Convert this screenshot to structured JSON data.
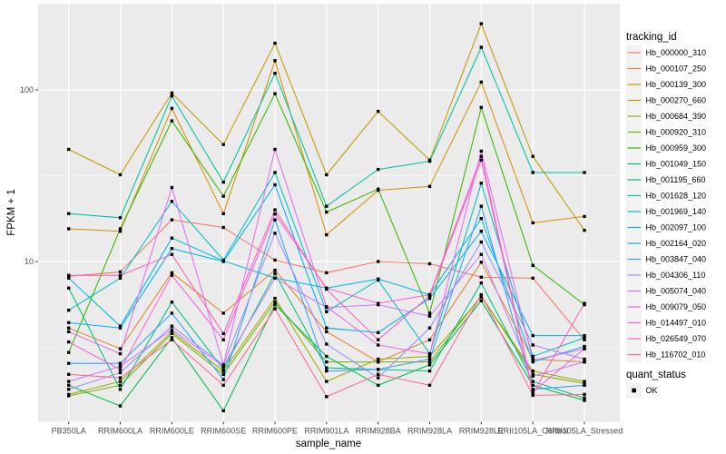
{
  "figure": {
    "x_axis_title": "sample_name",
    "y_axis_title": "FPKM + 1",
    "y_tick_labels": [
      "100",
      "10"
    ]
  },
  "legend": {
    "tracking_title": "tracking_id",
    "quant_title": "quant_status",
    "quant_items": [
      {
        "label": "OK",
        "marker": "black-square"
      }
    ]
  },
  "chart_data": {
    "type": "line",
    "title": "",
    "xlabel": "sample_name",
    "ylabel": "FPKM + 1",
    "y_scale": "log10",
    "ylim": [
      1.2,
      310
    ],
    "y_major_ticks": [
      10,
      100
    ],
    "y_minor_gridlines": [
      3.162,
      31.62
    ],
    "grid": true,
    "legend_position": "right",
    "panel_background": "#EBEBEB",
    "gridline_color": "#FFFFFF",
    "point_marker": "black-square",
    "point_color": "#000000",
    "categories": [
      "PB350LA",
      "RRIM600LA",
      "RRIM600LE",
      "RRIM600SE",
      "RRIM600PE",
      "RRIM901LA",
      "RRIM928BA",
      "RRIM928LA",
      "RRIM928LE",
      "RRII105LA_Control",
      "RRII105LA_Stressed"
    ],
    "series": [
      {
        "name": "Hb_000000_310",
        "color": "#F8766D",
        "values": [
          8.2,
          8.7,
          17.5,
          15.8,
          10.2,
          8.6,
          10.0,
          9.7,
          8.1,
          8.0,
          3.5
        ]
      },
      {
        "name": "Hb_000107_250",
        "color": "#EA8331",
        "values": [
          4.1,
          3.1,
          8.6,
          5.0,
          8.9,
          3.9,
          2.6,
          3.5,
          9.9,
          2.7,
          2.6
        ]
      },
      {
        "name": "Hb_000139_300",
        "color": "#D89000",
        "values": [
          15.5,
          15.0,
          78.0,
          19.0,
          148.0,
          14.3,
          26.0,
          27.4,
          111.0,
          16.8,
          18.3
        ]
      },
      {
        "name": "Hb_000270_660",
        "color": "#C09B00",
        "values": [
          45.0,
          32.0,
          96.0,
          48.0,
          187.0,
          32.0,
          75.0,
          39.0,
          243.0,
          41.0,
          15.2
        ]
      },
      {
        "name": "Hb_000684_390",
        "color": "#A3A500",
        "values": [
          1.68,
          2.0,
          3.9,
          2.3,
          6.1,
          2.0,
          2.7,
          2.8,
          6.2,
          2.3,
          2.0
        ]
      },
      {
        "name": "Hb_000920_310",
        "color": "#7CAE00",
        "values": [
          1.65,
          1.9,
          3.8,
          2.2,
          5.8,
          2.6,
          2.6,
          2.6,
          6.3,
          2.2,
          1.95
        ]
      },
      {
        "name": "Hb_000959_300",
        "color": "#39B600",
        "values": [
          2.95,
          15.5,
          66.0,
          24.0,
          95.0,
          19.4,
          26.4,
          5.0,
          79.0,
          9.5,
          5.6
        ]
      },
      {
        "name": "Hb_001049_150",
        "color": "#00BB4E",
        "values": [
          1.9,
          1.44,
          3.6,
          1.35,
          5.6,
          2.8,
          1.9,
          2.5,
          5.9,
          1.9,
          1.55
        ]
      },
      {
        "name": "Hb_001195_660",
        "color": "#00BF7D",
        "values": [
          7.0,
          1.8,
          5.8,
          2.35,
          8.5,
          2.4,
          2.35,
          2.3,
          7.5,
          2.0,
          1.6
        ]
      },
      {
        "name": "Hb_001628_120",
        "color": "#00C1A3",
        "values": [
          19.0,
          18.0,
          92.0,
          29.0,
          125.0,
          21.0,
          34.4,
          38.4,
          177.0,
          33.0,
          33.0
        ]
      },
      {
        "name": "Hb_001969_140",
        "color": "#00BFC4",
        "values": [
          5.2,
          8.0,
          22.4,
          10.2,
          33.0,
          5.1,
          7.8,
          2.9,
          28.6,
          2.8,
          3.6
        ]
      },
      {
        "name": "Hb_002097_100",
        "color": "#00BAE0",
        "values": [
          8.0,
          4.2,
          13.7,
          10.1,
          8.0,
          7.0,
          7.9,
          6.4,
          17.8,
          2.6,
          3.2
        ]
      },
      {
        "name": "Hb_002164_020",
        "color": "#00B0F6",
        "values": [
          4.4,
          4.1,
          11.9,
          10.0,
          28.0,
          4.1,
          3.85,
          6.1,
          15.0,
          3.7,
          3.7
        ]
      },
      {
        "name": "Hb_003847_040",
        "color": "#35A2FF",
        "values": [
          2.55,
          2.55,
          5.0,
          2.05,
          17.5,
          2.3,
          2.35,
          2.7,
          21.0,
          1.8,
          1.9
        ]
      },
      {
        "name": "Hb_004306_110",
        "color": "#9590FF",
        "values": [
          1.8,
          2.25,
          4.2,
          2.5,
          14.6,
          3.3,
          2.1,
          4.1,
          13.0,
          3.26,
          2.7
        ]
      },
      {
        "name": "Hb_005074_040",
        "color": "#C77CFF",
        "values": [
          2.0,
          2.45,
          4.0,
          2.45,
          8.0,
          5.4,
          5.6,
          4.8,
          11.0,
          2.15,
          2.6
        ]
      },
      {
        "name": "Hb_009079_050",
        "color": "#E76BF3",
        "values": [
          3.9,
          2.9,
          27.0,
          2.5,
          45.0,
          5.45,
          3.26,
          2.9,
          44.0,
          2.65,
          3.1
        ]
      },
      {
        "name": "Hb_014497_010",
        "color": "#FA62DB",
        "values": [
          3.4,
          2.35,
          8.3,
          3.5,
          18.9,
          7.0,
          5.7,
          6.4,
          41.0,
          1.74,
          3.1
        ]
      },
      {
        "name": "Hb_026549_070",
        "color": "#FF62BC",
        "values": [
          8.3,
          8.3,
          11.0,
          3.8,
          20.0,
          6.9,
          3.5,
          6.3,
          39.0,
          1.7,
          5.7
        ]
      },
      {
        "name": "Hb_116702_010",
        "color": "#FF6A98",
        "values": [
          2.2,
          2.1,
          3.5,
          1.9,
          5.3,
          1.63,
          2.2,
          1.9,
          6.4,
          1.66,
          1.68
        ]
      }
    ]
  }
}
